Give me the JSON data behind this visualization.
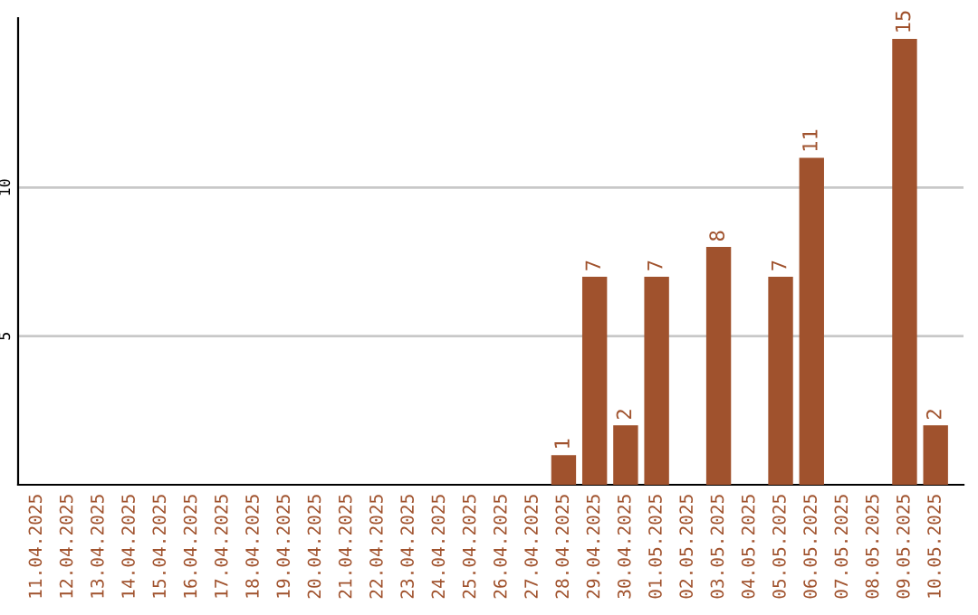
{
  "chart_data": {
    "type": "bar",
    "categories": [
      "11.04.2025",
      "12.04.2025",
      "13.04.2025",
      "14.04.2025",
      "15.04.2025",
      "16.04.2025",
      "17.04.2025",
      "18.04.2025",
      "19.04.2025",
      "20.04.2025",
      "21.04.2025",
      "22.04.2025",
      "23.04.2025",
      "24.04.2025",
      "25.04.2025",
      "26.04.2025",
      "27.04.2025",
      "28.04.2025",
      "29.04.2025",
      "30.04.2025",
      "01.05.2025",
      "02.05.2025",
      "03.05.2025",
      "04.05.2025",
      "05.05.2025",
      "06.05.2025",
      "07.05.2025",
      "08.05.2025",
      "09.05.2025",
      "10.05.2025"
    ],
    "values": [
      null,
      null,
      null,
      null,
      null,
      null,
      null,
      null,
      null,
      null,
      null,
      null,
      null,
      null,
      null,
      null,
      null,
      1,
      7,
      2,
      7,
      null,
      8,
      null,
      7,
      11,
      null,
      null,
      15,
      2
    ],
    "color": "#a0522d",
    "ylim": [
      0,
      15.7
    ],
    "yticks": [
      5,
      10
    ],
    "grid": "y",
    "data_labels": true
  }
}
